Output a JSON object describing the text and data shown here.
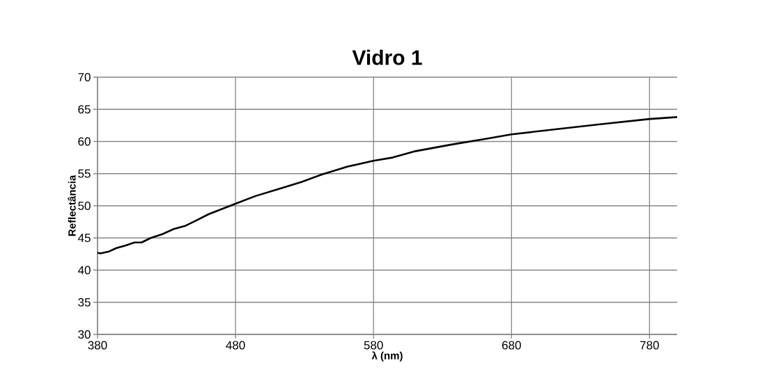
{
  "chart_data": {
    "type": "line",
    "title": "Vidro 1",
    "xlabel": "λ (nm)",
    "ylabel": "Reflectância",
    "x": [
      380,
      382,
      388.4,
      393.4,
      400.1,
      406.8,
      411.9,
      418.6,
      427,
      435.4,
      443.8,
      450.5,
      460.6,
      469,
      479.7,
      494.2,
      511,
      527.8,
      542.9,
      561.4,
      579.9,
      593.8,
      610.6,
      635.9,
      661.2,
      680,
      711.7,
      745.3,
      780.2,
      800
    ],
    "series": [
      {
        "color": "#000000",
        "values": [
          42.7,
          42.6,
          42.9,
          43.4,
          43.8,
          44.3,
          44.3,
          45.0,
          45.6,
          46.4,
          46.9,
          47.6,
          48.7,
          49.4,
          50.3,
          51.5,
          52.6,
          53.7,
          54.9,
          56.1,
          57.0,
          57.5,
          58.5,
          59.5,
          60.4,
          61.1,
          61.9,
          62.7,
          63.5,
          63.8
        ]
      }
    ],
    "xlim": [
      380,
      800
    ],
    "ylim": [
      30,
      70
    ],
    "xticks": [
      380,
      480,
      580,
      680,
      780
    ],
    "yticks": [
      30,
      35,
      40,
      45,
      50,
      55,
      60,
      65,
      70
    ],
    "grid": true,
    "marker": "none",
    "line_style": "solid"
  }
}
